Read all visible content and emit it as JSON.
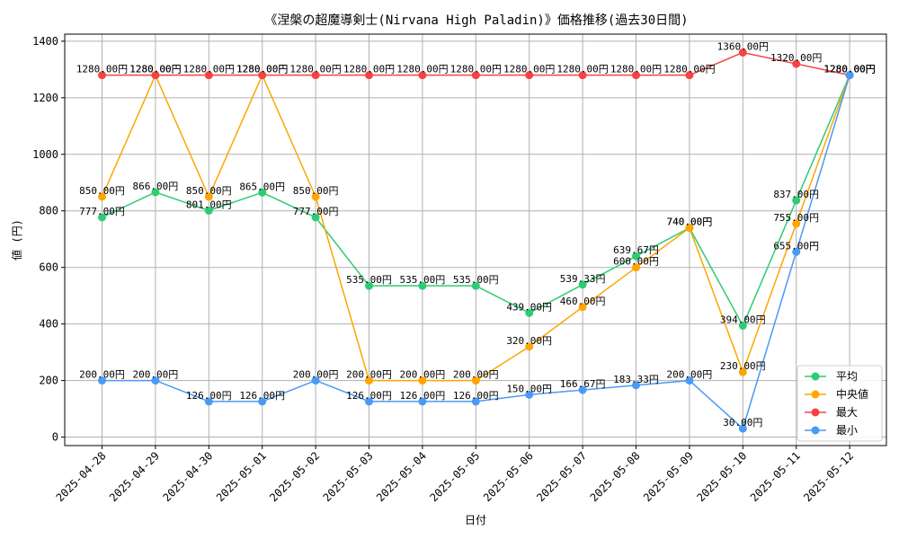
{
  "chart_data": {
    "type": "line",
    "title": "《涅槃の超魔導剣士(Nirvana High Paladin)》価格推移(過去30日間)",
    "xlabel": "日付",
    "ylabel": "値 (円)",
    "ylim": [
      -30,
      1425
    ],
    "yticks": [
      0,
      200,
      400,
      600,
      800,
      1000,
      1200,
      1400
    ],
    "ytick_labels": [
      "0",
      "200",
      "400",
      "600",
      "800",
      "1000",
      "1200",
      "1400"
    ],
    "grid": true,
    "legend_position": "lower-right",
    "categories": [
      "2025-04-28",
      "2025-04-29",
      "2025-04-30",
      "2025-05-01",
      "2025-05-02",
      "2025-05-03",
      "2025-05-04",
      "2025-05-05",
      "2025-05-06",
      "2025-05-07",
      "2025-05-08",
      "2025-05-09",
      "2025-05-10",
      "2025-05-11",
      "2025-05-12"
    ],
    "series": [
      {
        "name": "平均",
        "color": "#2ecc71",
        "values": [
          777,
          866,
          801,
          865,
          777,
          535,
          535,
          535,
          439,
          539.33,
          639.67,
          740,
          394,
          837,
          1280
        ],
        "labels": [
          "777.00円",
          "866.00円",
          "801.00円",
          "865.00円",
          "777.00円",
          "535.00円",
          "535.00円",
          "535.00円",
          "439.00円",
          "539.33円",
          "639.67円",
          "740.00円",
          "394.00円",
          "837.00円",
          "1280.00円"
        ]
      },
      {
        "name": "中央値",
        "color": "#ffa500",
        "values": [
          850,
          1280,
          850,
          1280,
          850,
          200,
          200,
          200,
          320,
          460,
          600,
          740,
          230,
          755,
          1280
        ],
        "labels": [
          "850.00円",
          "1280.00円",
          "850.00円",
          "1280.00円",
          "850.00円",
          "200.00円",
          "200.00円",
          "200.00円",
          "320.00円",
          "460.00円",
          "600.00円",
          "740.00円",
          "230.00円",
          "755.00円",
          "1280.00円"
        ]
      },
      {
        "name": "最大",
        "color": "#f44346",
        "values": [
          1280,
          1280,
          1280,
          1280,
          1280,
          1280,
          1280,
          1280,
          1280,
          1280,
          1280,
          1280,
          1360,
          1320,
          1280
        ],
        "labels": [
          "1280.00円",
          "1280.00円",
          "1280.00円",
          "1280.00円",
          "1280.00円",
          "1280.00円",
          "1280.00円",
          "1280.00円",
          "1280.00円",
          "1280.00円",
          "1280.00円",
          "1280.00円",
          "1360.00円",
          "1320.00円",
          "1280.00円"
        ]
      },
      {
        "name": "最小",
        "color": "#4a9af5",
        "values": [
          200,
          200,
          126,
          126,
          200,
          126,
          126,
          126,
          150,
          166.67,
          183.33,
          200,
          30,
          655,
          1280
        ],
        "labels": [
          "200.00円",
          "200.00円",
          "126.00円",
          "126.00円",
          "200.00円",
          "126.00円",
          "126.00円",
          "126.00円",
          "150.00円",
          "166.67円",
          "183.33円",
          "200.00円",
          "30.00円",
          "655.00円",
          "1280.00円"
        ]
      }
    ]
  }
}
